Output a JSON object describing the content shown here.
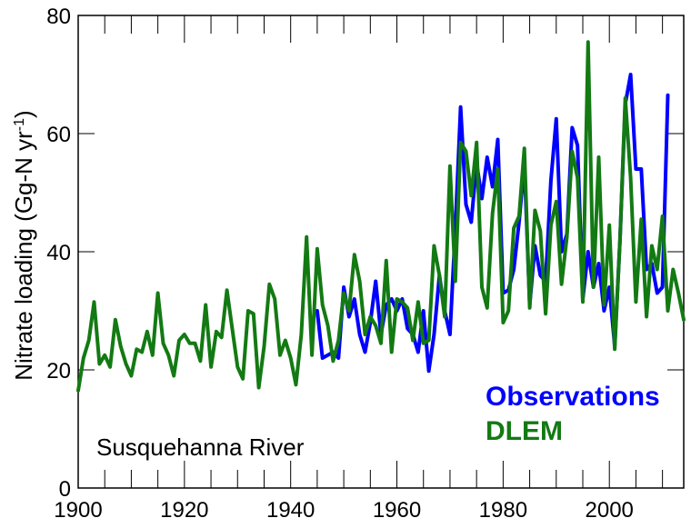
{
  "chart_data": {
    "type": "line",
    "title": "",
    "annotation": "Susquehanna River",
    "xlabel": "",
    "ylabel": "Nitrate loading (Gg-N yr",
    "ylabel_superscript": "-1",
    "ylabel_close": ")",
    "xlim": [
      1900,
      2014
    ],
    "ylim": [
      0,
      80
    ],
    "x_ticks": [
      1900,
      1920,
      1940,
      1960,
      1980,
      2000
    ],
    "y_ticks": [
      0,
      20,
      40,
      60,
      80
    ],
    "grid": false,
    "legend_placement": "lower-right",
    "series": [
      {
        "name": "Observations",
        "color": "#0000ff",
        "x": [
          1945,
          1946,
          1947,
          1948,
          1949,
          1950,
          1951,
          1952,
          1953,
          1954,
          1955,
          1956,
          1957,
          1958,
          1959,
          1960,
          1961,
          1962,
          1963,
          1964,
          1965,
          1966,
          1967,
          1968,
          1969,
          1970,
          1971,
          1972,
          1973,
          1974,
          1975,
          1976,
          1977,
          1978,
          1979,
          1980,
          1981,
          1982,
          1983,
          1984,
          1985,
          1986,
          1987,
          1988,
          1989,
          1990,
          1991,
          1992,
          1993,
          1994,
          1995,
          1996,
          1997,
          1998,
          1999,
          2000,
          2001,
          2002,
          2003,
          2004,
          2005,
          2006,
          2007,
          2008,
          2009,
          2010,
          2011
        ],
        "y": [
          30,
          22,
          22.5,
          23,
          22,
          34,
          29,
          32,
          26,
          23,
          28,
          35,
          26,
          31,
          32,
          30,
          32,
          27,
          26,
          23,
          30,
          19.8,
          26,
          36,
          30,
          26,
          44,
          64.5,
          48,
          45,
          55,
          49,
          56,
          51,
          59,
          33,
          33.5,
          37,
          45,
          55,
          31,
          41,
          36,
          35,
          52,
          62.5,
          40,
          43,
          61,
          58,
          32,
          40,
          34,
          38,
          30,
          34,
          24,
          42,
          65,
          70,
          54,
          54,
          37,
          38,
          33,
          34,
          66.5
        ]
      },
      {
        "name": "DLEM",
        "color": "#137a13",
        "x": [
          1900,
          1901,
          1902,
          1903,
          1904,
          1905,
          1906,
          1907,
          1908,
          1909,
          1910,
          1911,
          1912,
          1913,
          1914,
          1915,
          1916,
          1917,
          1918,
          1919,
          1920,
          1921,
          1922,
          1923,
          1924,
          1925,
          1926,
          1927,
          1928,
          1929,
          1930,
          1931,
          1932,
          1933,
          1934,
          1935,
          1936,
          1937,
          1938,
          1939,
          1940,
          1941,
          1942,
          1943,
          1944,
          1945,
          1946,
          1947,
          1948,
          1949,
          1950,
          1951,
          1952,
          1953,
          1954,
          1955,
          1956,
          1957,
          1958,
          1959,
          1960,
          1961,
          1962,
          1963,
          1964,
          1965,
          1966,
          1967,
          1968,
          1969,
          1970,
          1971,
          1972,
          1973,
          1974,
          1975,
          1976,
          1977,
          1978,
          1979,
          1980,
          1981,
          1982,
          1983,
          1984,
          1985,
          1986,
          1987,
          1988,
          1989,
          1990,
          1991,
          1992,
          1993,
          1994,
          1995,
          1996,
          1997,
          1998,
          1999,
          2000,
          2001,
          2002,
          2003,
          2004,
          2005,
          2006,
          2007,
          2008,
          2009,
          2010,
          2011,
          2012,
          2013,
          2014
        ],
        "y": [
          16.5,
          22,
          25,
          31.5,
          21,
          22.5,
          20.5,
          28.5,
          24,
          21,
          19,
          23.5,
          23,
          26.5,
          22.5,
          33,
          24.5,
          22.5,
          19,
          25,
          26,
          24.5,
          24.5,
          21.5,
          31,
          20.5,
          26.5,
          25.5,
          33.5,
          27,
          20.5,
          18.5,
          30,
          29.5,
          17,
          24,
          34.5,
          32,
          22.5,
          25,
          22,
          17.5,
          26,
          42.5,
          22.5,
          40.5,
          31,
          27.5,
          21.5,
          25,
          33,
          30,
          39.5,
          35,
          26,
          29,
          27.5,
          24.5,
          38.5,
          23,
          32,
          31.5,
          30.5,
          25,
          31.5,
          24.5,
          25,
          41,
          36,
          29,
          54.5,
          35,
          58.5,
          57,
          49.5,
          58.5,
          34,
          30.5,
          46.5,
          54,
          28,
          30,
          44,
          46,
          57.5,
          30.5,
          47,
          43.5,
          29.5,
          44.5,
          48.5,
          34.5,
          42.5,
          57,
          52.5,
          31.5,
          75.5,
          34,
          56,
          31,
          44.5,
          23.5,
          42,
          66,
          52.5,
          31.5,
          45.5,
          29,
          41,
          37,
          46,
          30,
          37,
          33,
          28.5
        ]
      }
    ]
  }
}
